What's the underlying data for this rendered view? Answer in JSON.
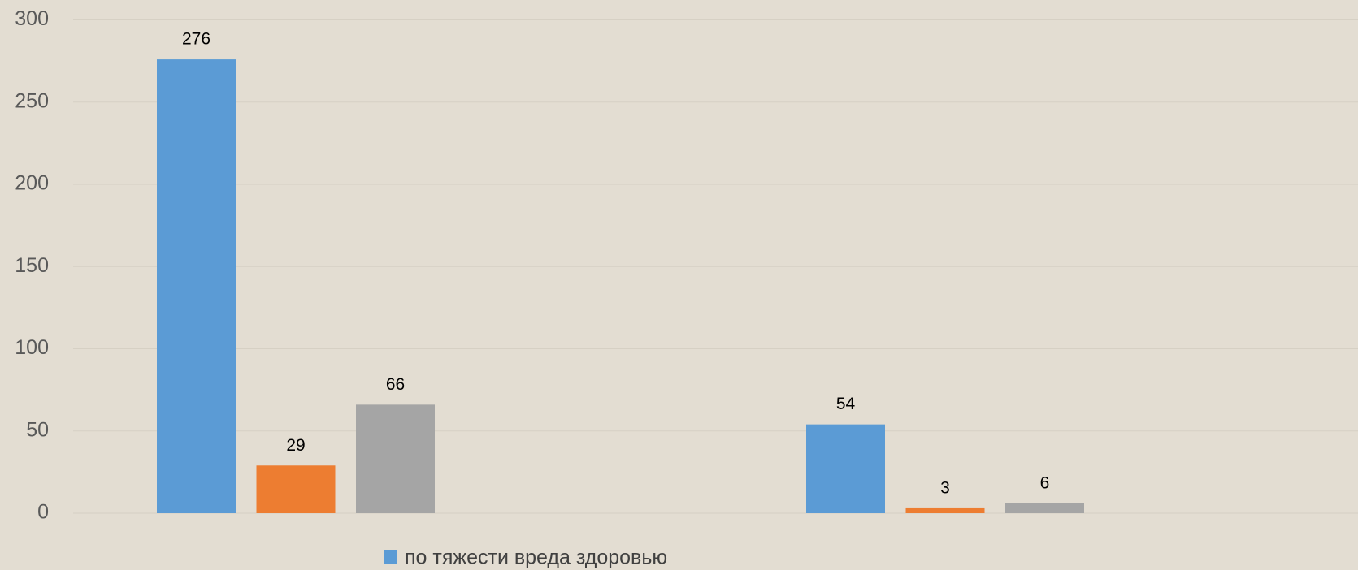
{
  "chart_data": {
    "type": "bar",
    "categories": [
      null,
      null
    ],
    "series": [
      {
        "name": "по тяжести вреда здоровью",
        "color": "#5b9bd5",
        "values": [
          276,
          54
        ]
      },
      {
        "color": "#ed7d31",
        "values": [
          29,
          3
        ]
      },
      {
        "color": "#a5a5a5",
        "values": [
          66,
          6
        ]
      }
    ],
    "ylim": [
      0,
      300
    ],
    "yticks": [
      0,
      50,
      100,
      150,
      200,
      250,
      300
    ],
    "grid": true,
    "legend": "bottom"
  }
}
